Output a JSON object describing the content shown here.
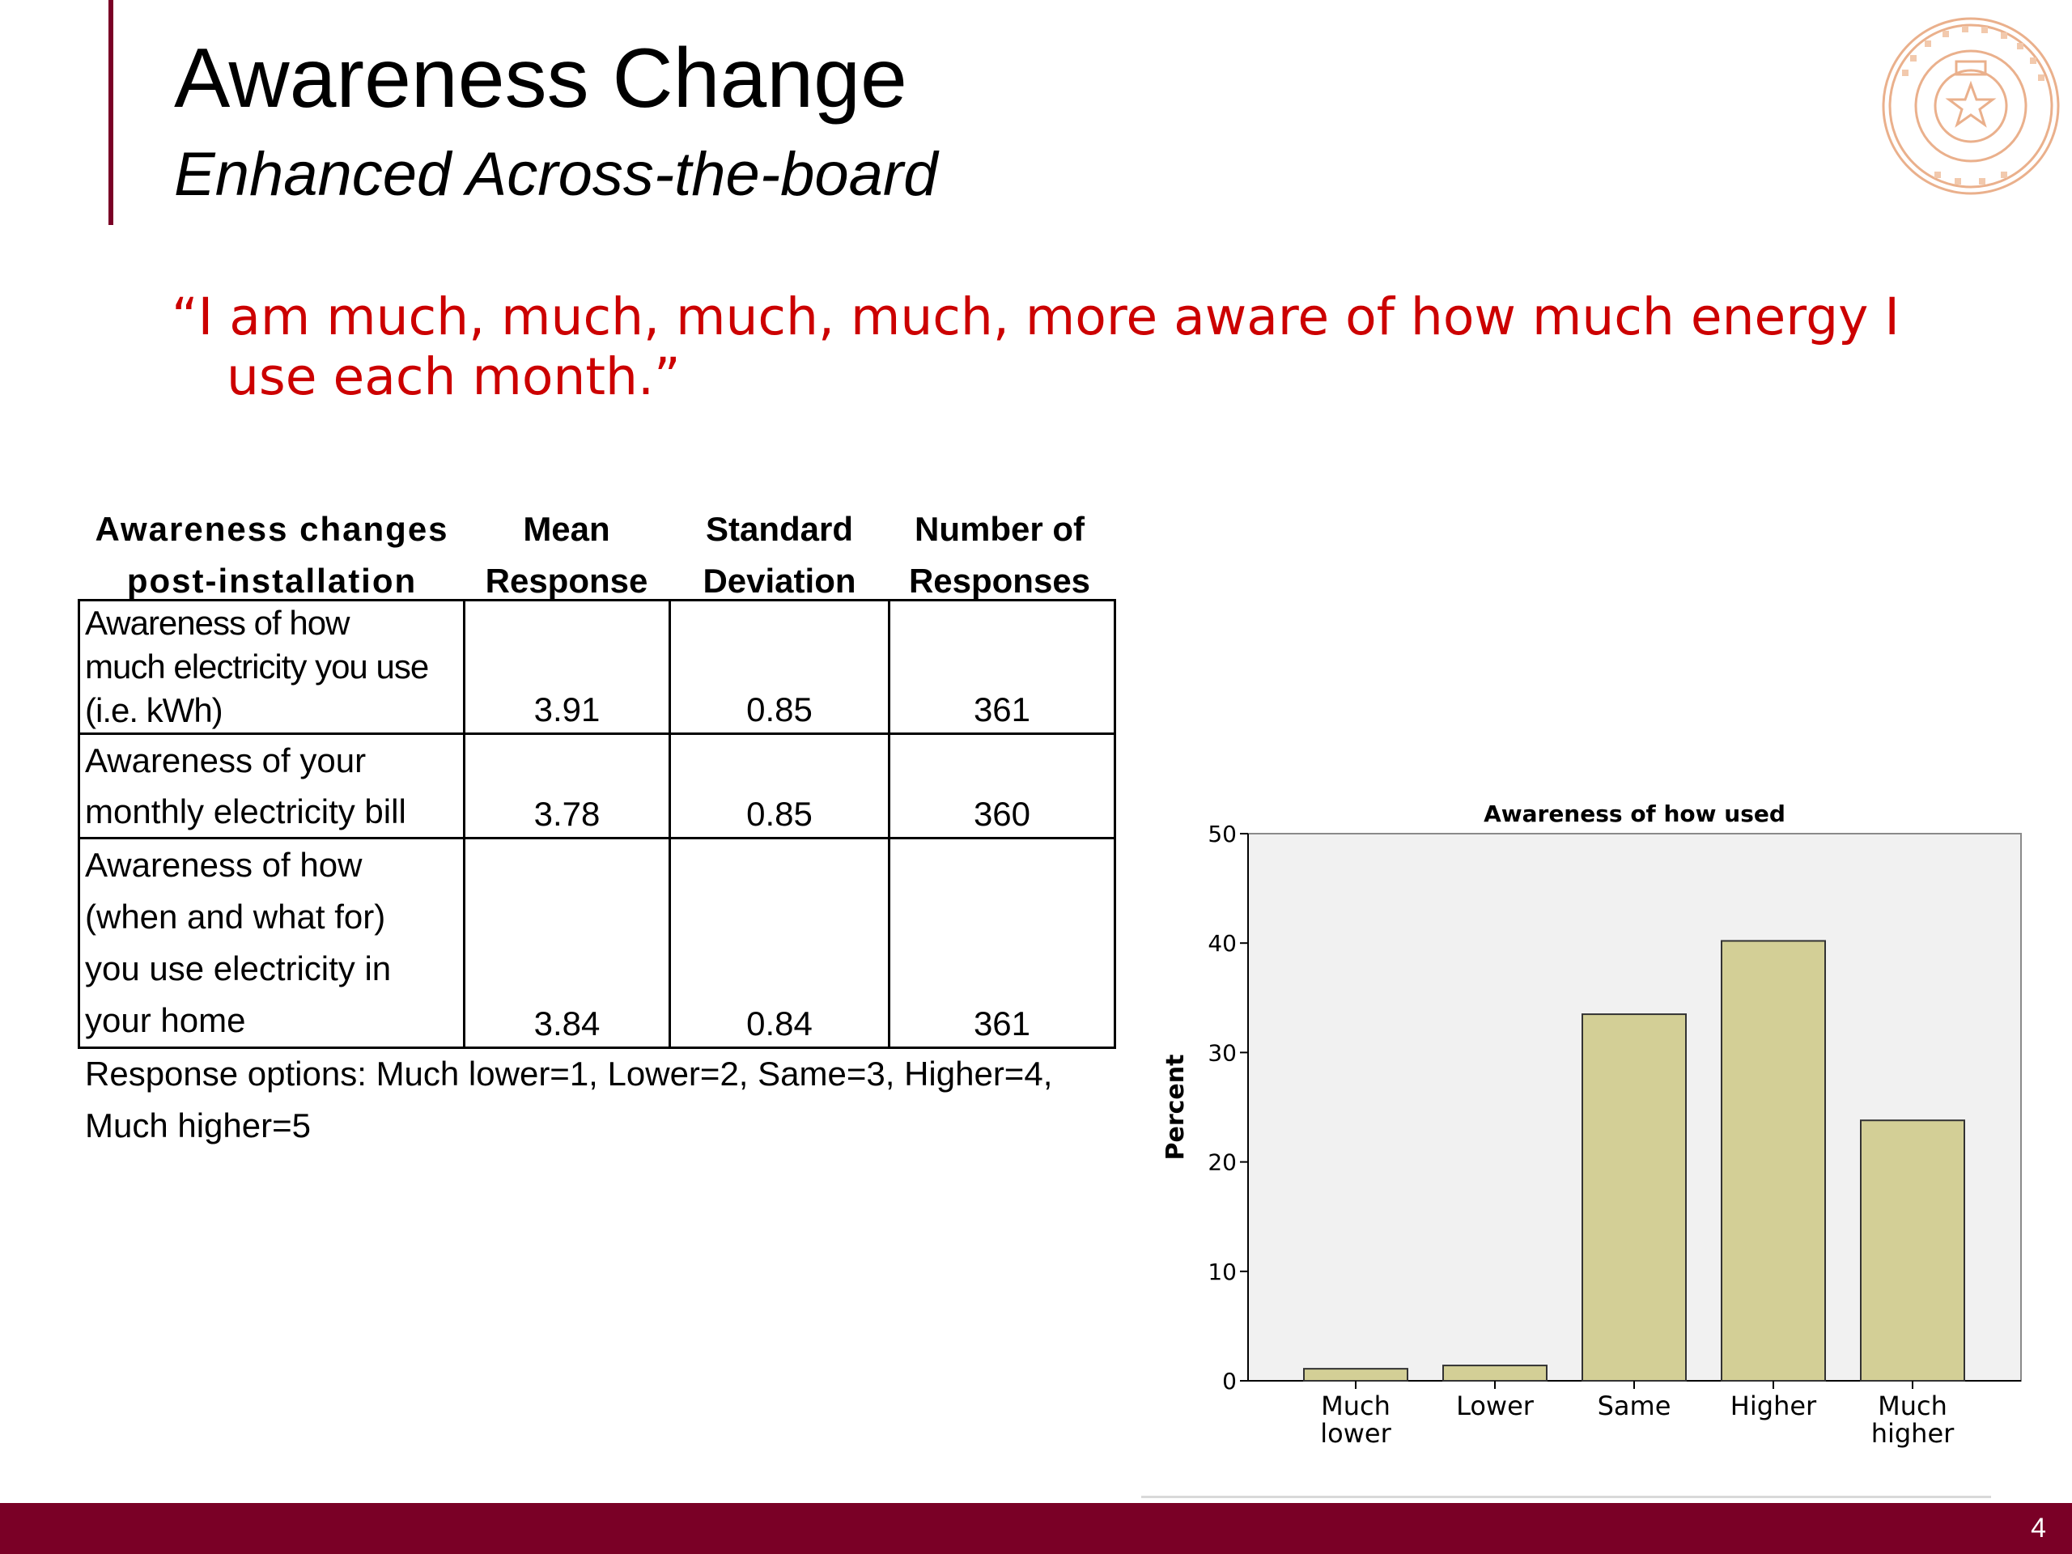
{
  "slide": {
    "title": "Awareness Change",
    "subtitle": "Enhanced Across-the-board",
    "quote_line1": "“I am much, much, much, much, more aware of how much energy I",
    "quote_line2": "use each month.”",
    "page_number": "4"
  },
  "table": {
    "headers": {
      "awareness_line1": "Awareness changes",
      "awareness_line2": "post-installation",
      "mean_line1": "Mean",
      "mean_line2": "Response",
      "std_line1": "Standard",
      "std_line2": "Deviation",
      "num_line1": "Number of",
      "num_line2": "Responses"
    },
    "rows": [
      {
        "label_lines": [
          "Awareness of how",
          "much electricity you use",
          "(i.e. kWh)"
        ],
        "mean": "3.91",
        "std": "0.85",
        "n": "361"
      },
      {
        "label_lines": [
          "Awareness of your",
          "monthly electricity bill"
        ],
        "mean": "3.78",
        "std": "0.85",
        "n": "360"
      },
      {
        "label_lines": [
          "Awareness of how",
          "(when and what for)",
          "you use electricity in",
          "your home"
        ],
        "mean": "3.84",
        "std": "0.84",
        "n": "361"
      }
    ],
    "note_line1": "Response options: Much lower=1, Lower=2, Same=3, Higher=4,",
    "note_line2": "Much higher=5"
  },
  "chart_data": {
    "type": "bar",
    "title": "Awareness of how used",
    "ylabel": "Percent",
    "xlabel": "",
    "categories": [
      [
        "Much",
        "lower"
      ],
      [
        "Lower"
      ],
      [
        "Same"
      ],
      [
        "Higher"
      ],
      [
        "Much",
        "higher"
      ]
    ],
    "values": [
      1.1,
      1.4,
      33.5,
      40.2,
      23.8
    ],
    "ylim": [
      0,
      50
    ],
    "yticks": [
      0,
      10,
      20,
      30,
      40,
      50
    ],
    "grid": false,
    "colors": {
      "bar": "#d3cf96",
      "plot_bg": "#f1f1f1"
    }
  }
}
